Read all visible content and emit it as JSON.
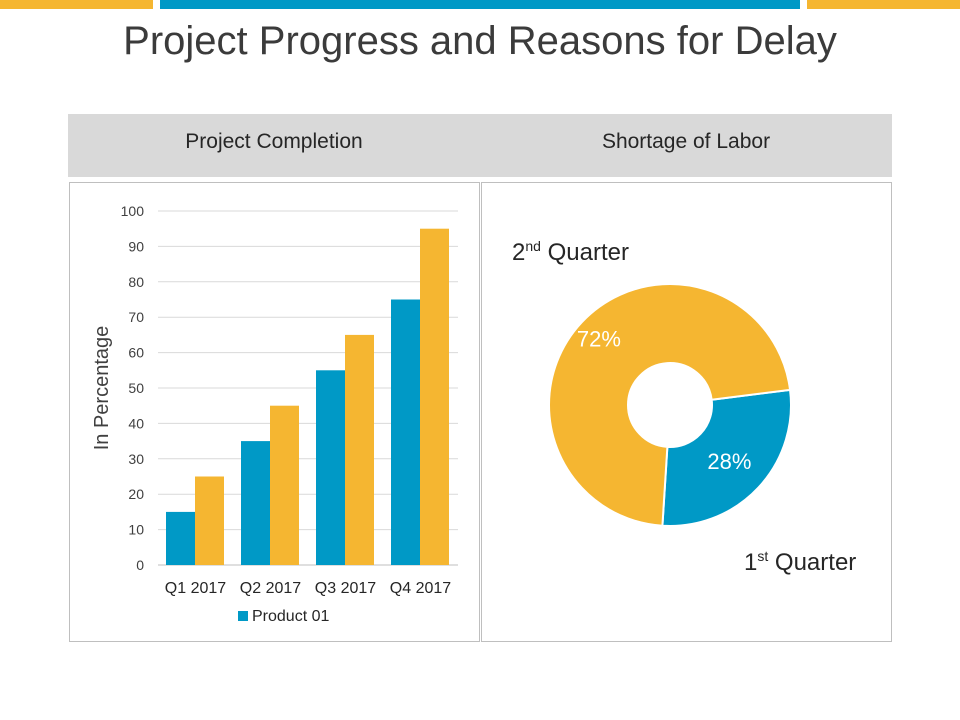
{
  "page": {
    "title": "Project Progress and Reasons for Delay",
    "accent_colors": {
      "gold": "#F5B631",
      "blue": "#0099C6"
    }
  },
  "headers": {
    "left": "Project Completion",
    "right": "Shortage of Labor"
  },
  "chart_data": [
    {
      "type": "bar",
      "title": "",
      "categories": [
        "Q1 2017",
        "Q2 2017",
        "Q3 2017",
        "Q4 2017"
      ],
      "series": [
        {
          "name": "Product 01",
          "color": "#0099C6",
          "values": [
            15,
            35,
            55,
            75
          ]
        },
        {
          "color": "#F5B631",
          "values": [
            25,
            45,
            65,
            95
          ]
        }
      ],
      "ylabel": "In Percentage",
      "xlabel": "",
      "ylim": [
        0,
        100
      ],
      "yticks": [
        0,
        10,
        20,
        30,
        40,
        50,
        60,
        70,
        80,
        90,
        100
      ],
      "grid": true,
      "legend": "bottom"
    },
    {
      "type": "pie",
      "donut": true,
      "title": "",
      "slices": [
        {
          "value": 28,
          "label": "28%",
          "color": "#0099C6"
        },
        {
          "value": 72,
          "label": "72%",
          "color": "#F5B631"
        }
      ]
    }
  ],
  "quarter_labels": {
    "second": {
      "num": "2",
      "sup": "nd",
      "text": " Quarter"
    },
    "first": {
      "num": "1",
      "sup": "st",
      "text": " Quarter"
    }
  }
}
